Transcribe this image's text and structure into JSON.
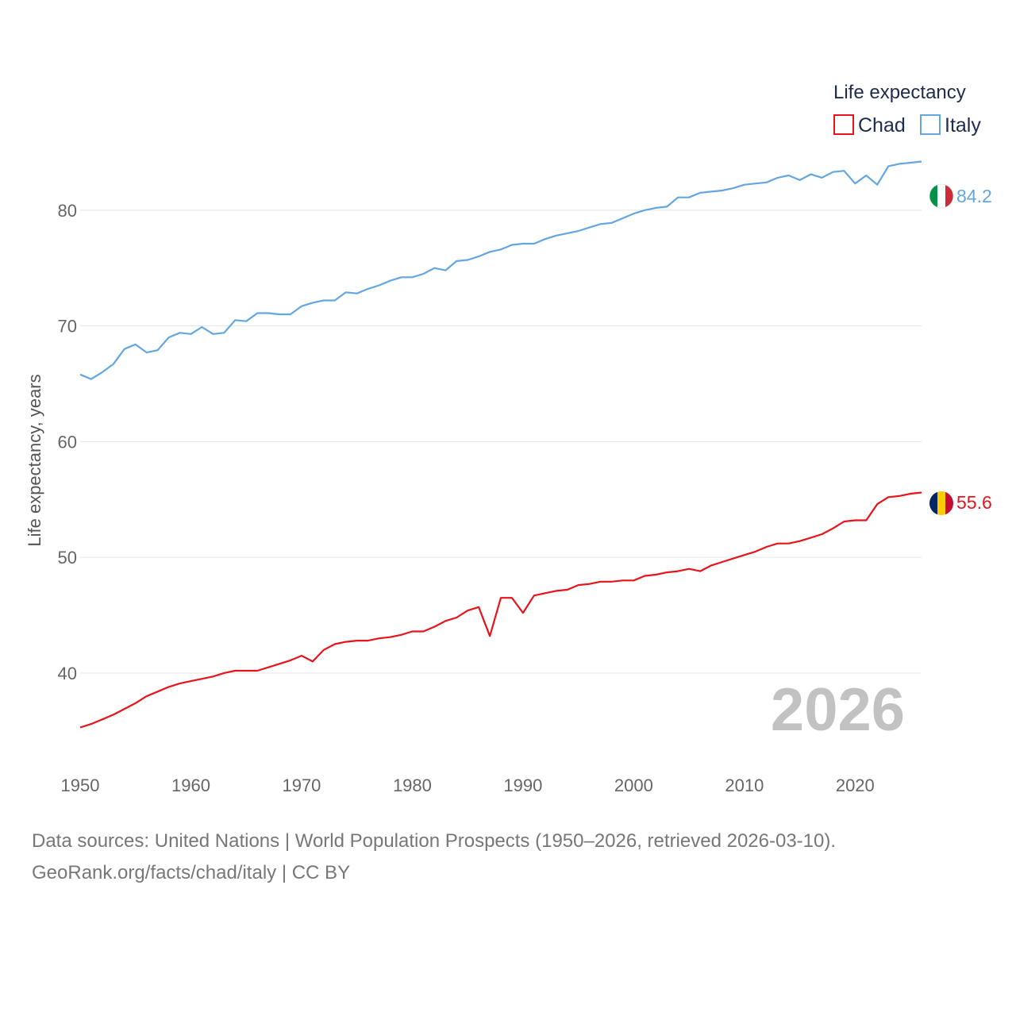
{
  "chart_data": {
    "type": "line",
    "ylabel": "Life expectancy, years",
    "xlabel": "",
    "xlim": [
      1950,
      2026
    ],
    "ylim": [
      33,
      86.5
    ],
    "xticks": [
      1950,
      1960,
      1970,
      1980,
      1990,
      2000,
      2010,
      2020
    ],
    "yticks": [
      40,
      50,
      60,
      70,
      80
    ],
    "grid": true,
    "legend": {
      "title": "Life expectancy",
      "position": "top-right"
    },
    "current_year": "2026",
    "x": [
      1950,
      1951,
      1952,
      1953,
      1954,
      1955,
      1956,
      1957,
      1958,
      1959,
      1960,
      1961,
      1962,
      1963,
      1964,
      1965,
      1966,
      1967,
      1968,
      1969,
      1970,
      1971,
      1972,
      1973,
      1974,
      1975,
      1976,
      1977,
      1978,
      1979,
      1980,
      1981,
      1982,
      1983,
      1984,
      1985,
      1986,
      1987,
      1988,
      1989,
      1990,
      1991,
      1992,
      1993,
      1994,
      1995,
      1996,
      1997,
      1998,
      1999,
      2000,
      2001,
      2002,
      2003,
      2004,
      2005,
      2006,
      2007,
      2008,
      2009,
      2010,
      2011,
      2012,
      2013,
      2014,
      2015,
      2016,
      2017,
      2018,
      2019,
      2020,
      2021,
      2022,
      2023,
      2024,
      2025,
      2026
    ],
    "series": [
      {
        "name": "Chad",
        "color": "#e8131b",
        "end_label": "55.6",
        "flag": "chad-flag-icon",
        "values": [
          35.3,
          35.6,
          36.0,
          36.4,
          36.9,
          37.4,
          38.0,
          38.4,
          38.8,
          39.1,
          39.3,
          39.5,
          39.7,
          40.0,
          40.2,
          40.2,
          40.2,
          40.5,
          40.8,
          41.1,
          41.5,
          41.0,
          42.0,
          42.5,
          42.7,
          42.8,
          42.8,
          43.0,
          43.1,
          43.3,
          43.6,
          43.6,
          44.0,
          44.5,
          44.8,
          45.4,
          45.7,
          43.2,
          46.5,
          46.5,
          45.2,
          46.7,
          46.9,
          47.1,
          47.2,
          47.6,
          47.7,
          47.9,
          47.9,
          48.0,
          48.0,
          48.4,
          48.5,
          48.7,
          48.8,
          49.0,
          48.8,
          49.3,
          49.6,
          49.9,
          50.2,
          50.5,
          50.9,
          51.2,
          51.2,
          51.4,
          51.7,
          52.0,
          52.5,
          53.1,
          53.2,
          53.2,
          54.6,
          55.2,
          55.3,
          55.5,
          55.6
        ]
      },
      {
        "name": "Italy",
        "color": "#64a6e0",
        "end_label": "84.2",
        "flag": "italy-flag-icon",
        "values": [
          65.8,
          65.4,
          66.0,
          66.7,
          68.0,
          68.4,
          67.7,
          67.9,
          69.0,
          69.4,
          69.3,
          69.9,
          69.3,
          69.4,
          70.5,
          70.4,
          71.1,
          71.1,
          71.0,
          71.0,
          71.7,
          72.0,
          72.2,
          72.2,
          72.9,
          72.8,
          73.2,
          73.5,
          73.9,
          74.2,
          74.2,
          74.5,
          75.0,
          74.8,
          75.6,
          75.7,
          76.0,
          76.4,
          76.6,
          77.0,
          77.1,
          77.1,
          77.5,
          77.8,
          78.0,
          78.2,
          78.5,
          78.8,
          78.9,
          79.3,
          79.7,
          80.0,
          80.2,
          80.3,
          81.1,
          81.1,
          81.5,
          81.6,
          81.7,
          81.9,
          82.2,
          82.3,
          82.4,
          82.8,
          83.0,
          82.6,
          83.1,
          82.8,
          83.3,
          83.4,
          82.3,
          83.0,
          82.2,
          83.8,
          84.0,
          84.1,
          84.2
        ]
      }
    ]
  },
  "footer": {
    "sources": "Data sources: United Nations | World Population Prospects (1950–2026, retrieved 2026-03-10).",
    "credit": "GeoRank.org/facts/chad/italy | CC BY"
  }
}
